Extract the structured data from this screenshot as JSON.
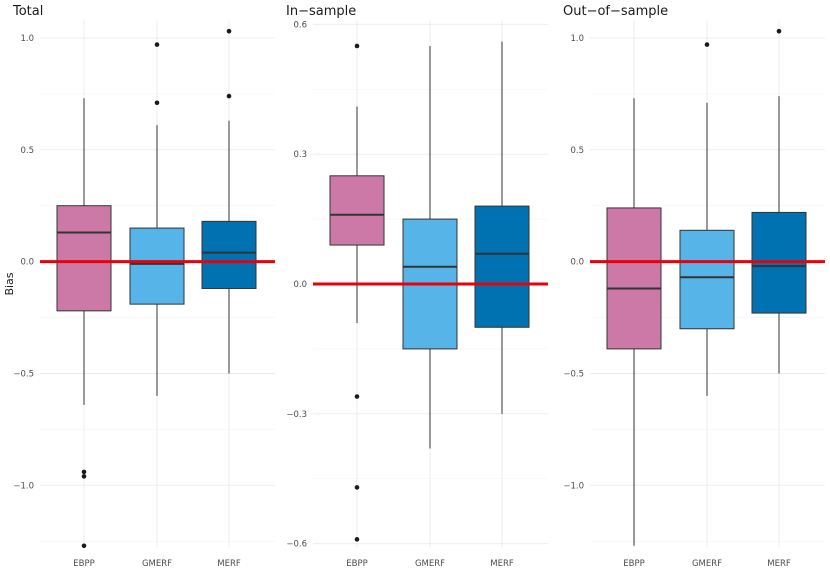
{
  "chart_data": [
    {
      "type": "boxplot",
      "title": "Total",
      "xlabel": "",
      "ylabel": "Bias",
      "categories": [
        "EBPP",
        "GMERF",
        "MERF"
      ],
      "ylim": [
        -1.28,
        1.08
      ],
      "yticks": [
        -1.0,
        -0.5,
        0.0,
        0.5,
        1.0
      ],
      "yticklabels": [
        "−1.0",
        "−0.5",
        "0.0",
        "0.5",
        "1.0"
      ],
      "reference_line": 0,
      "boxes": [
        {
          "name": "EBPP",
          "whisker_low": -0.64,
          "q1": -0.22,
          "median": 0.13,
          "q3": 0.25,
          "whisker_high": 0.73,
          "outliers": [
            -0.94,
            -0.96,
            -1.27
          ]
        },
        {
          "name": "GMERF",
          "whisker_low": -0.6,
          "q1": -0.19,
          "median": -0.01,
          "q3": 0.15,
          "whisker_high": 0.61,
          "outliers": [
            0.71,
            0.97
          ]
        },
        {
          "name": "MERF",
          "whisker_low": -0.5,
          "q1": -0.12,
          "median": 0.04,
          "q3": 0.18,
          "whisker_high": 0.63,
          "outliers": [
            0.74,
            1.03
          ]
        }
      ]
    },
    {
      "type": "boxplot",
      "title": "In−sample",
      "xlabel": "",
      "ylabel": "",
      "categories": [
        "EBPP",
        "GMERF",
        "MERF"
      ],
      "ylim": [
        -0.61,
        0.61
      ],
      "yticks": [
        -0.6,
        -0.3,
        0.0,
        0.3,
        0.6
      ],
      "yticklabels": [
        "−0.6",
        "−0.3",
        "0.0",
        "0.3",
        "0.6"
      ],
      "reference_line": 0,
      "boxes": [
        {
          "name": "EBPP",
          "whisker_low": -0.09,
          "q1": 0.09,
          "median": 0.16,
          "q3": 0.25,
          "whisker_high": 0.41,
          "outliers": [
            0.55,
            -0.26,
            -0.47,
            -0.59
          ]
        },
        {
          "name": "GMERF",
          "whisker_low": -0.38,
          "q1": -0.15,
          "median": 0.04,
          "q3": 0.15,
          "whisker_high": 0.55,
          "outliers": []
        },
        {
          "name": "MERF",
          "whisker_low": -0.3,
          "q1": -0.1,
          "median": 0.07,
          "q3": 0.18,
          "whisker_high": 0.56,
          "outliers": []
        }
      ]
    },
    {
      "type": "boxplot",
      "title": "Out−of−sample",
      "xlabel": "",
      "ylabel": "",
      "categories": [
        "EBPP",
        "GMERF",
        "MERF"
      ],
      "ylim": [
        -1.28,
        1.08
      ],
      "yticks": [
        -1.0,
        -0.5,
        0.0,
        0.5,
        1.0
      ],
      "yticklabels": [
        "−1.0",
        "−0.5",
        "0.0",
        "0.5",
        "1.0"
      ],
      "reference_line": 0,
      "boxes": [
        {
          "name": "EBPP",
          "whisker_low": -1.27,
          "q1": -0.39,
          "median": -0.12,
          "q3": 0.24,
          "whisker_high": 0.73,
          "outliers": []
        },
        {
          "name": "GMERF",
          "whisker_low": -0.6,
          "q1": -0.3,
          "median": -0.07,
          "q3": 0.14,
          "whisker_high": 0.71,
          "outliers": [
            0.97
          ]
        },
        {
          "name": "MERF",
          "whisker_low": -0.5,
          "q1": -0.23,
          "median": -0.02,
          "q3": 0.22,
          "whisker_high": 0.74,
          "outliers": [
            1.03
          ]
        }
      ]
    }
  ],
  "colors": {
    "EBPP": "#cc79a7",
    "GMERF": "#56b4e9",
    "MERF": "#0072b2",
    "reference_line": "#e8000b",
    "box_outline": "#333333",
    "grid": "#ebebeb"
  },
  "grid": true,
  "legend": "none"
}
